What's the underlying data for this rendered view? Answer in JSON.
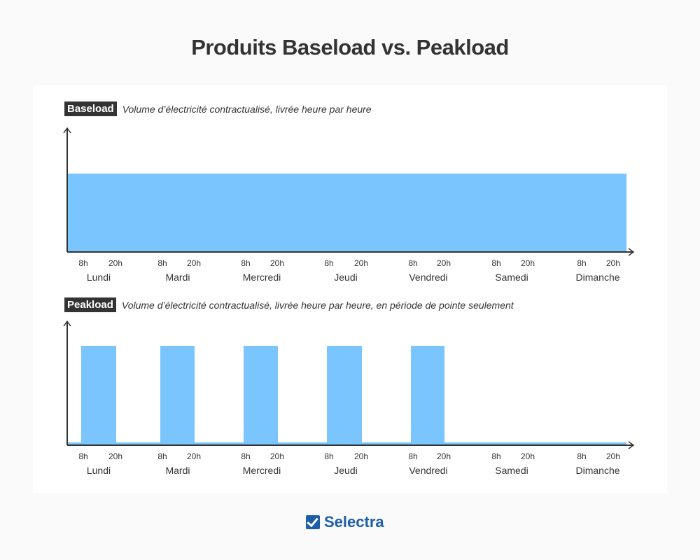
{
  "title": "Produits Baseload vs. Peakload",
  "baseload": {
    "tag": "Baseload",
    "description": "Volume d’électricité contractualisé, livrée heure par heure",
    "level": 1
  },
  "peakload": {
    "tag": "Peakload",
    "description": "Volume d’électricité contractualisé, livrée heure par heure, en période de pointe seulement",
    "peak_days": [
      "Lundi",
      "Mardi",
      "Mercredi",
      "Jeudi",
      "Vendredi"
    ],
    "peak_hours": [
      "8h",
      "20h"
    ]
  },
  "days": [
    "Lundi",
    "Mardi",
    "Mercredi",
    "Jeudi",
    "Vendredi",
    "Samedi",
    "Dimanche"
  ],
  "hours": [
    "8h",
    "20h"
  ],
  "colors": {
    "fill": "#7ac5fd",
    "axis": "#333333",
    "brand": "#1e5ea8"
  },
  "logo": "Selectra"
}
